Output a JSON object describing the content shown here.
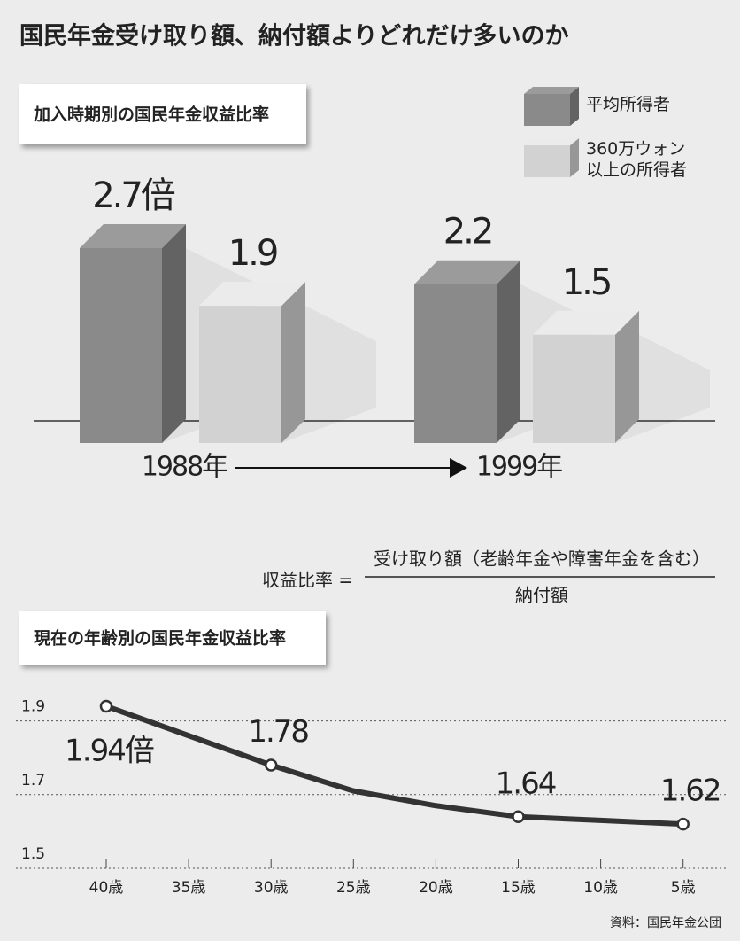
{
  "title": "国民年金受け取り額、納付額よりどれだけ多いのか",
  "formula": {
    "left": "収益比率 =",
    "numerator": "受け取り額（老齢年金や障害年金を含む）",
    "denominator": "納付額"
  },
  "source": "資料：国民年金公団",
  "chart_data": [
    {
      "type": "bar3d",
      "title": "加入時期別の国民年金収益比率",
      "categories": [
        "1988年",
        "1999年"
      ],
      "series": [
        {
          "name": "平均所得者",
          "color": "#8a8a8a",
          "values": [
            2.7,
            2.2
          ],
          "value_labels": [
            "2.7倍",
            "2.2"
          ]
        },
        {
          "name": "360万ウォン\n以上の所得者",
          "color": "#d2d2d2",
          "values": [
            1.9,
            1.5
          ],
          "value_labels": [
            "1.9",
            "1.5"
          ]
        }
      ]
    },
    {
      "type": "line",
      "title": "現在の年齢別の国民年金収益比率",
      "categories": [
        "40歳",
        "35歳",
        "30歳",
        "25歳",
        "20歳",
        "15歳",
        "10歳",
        "5歳"
      ],
      "values": [
        1.94,
        1.86,
        1.78,
        1.71,
        1.67,
        1.64,
        1.63,
        1.62
      ],
      "value_labels": [
        "1.94倍",
        null,
        "1.78",
        null,
        null,
        "1.64",
        null,
        "1.62"
      ],
      "color": "#333333",
      "ylim": [
        1.5,
        2.0
      ],
      "yticks": [
        1.9,
        1.7,
        1.5
      ],
      "grid": true
    }
  ]
}
